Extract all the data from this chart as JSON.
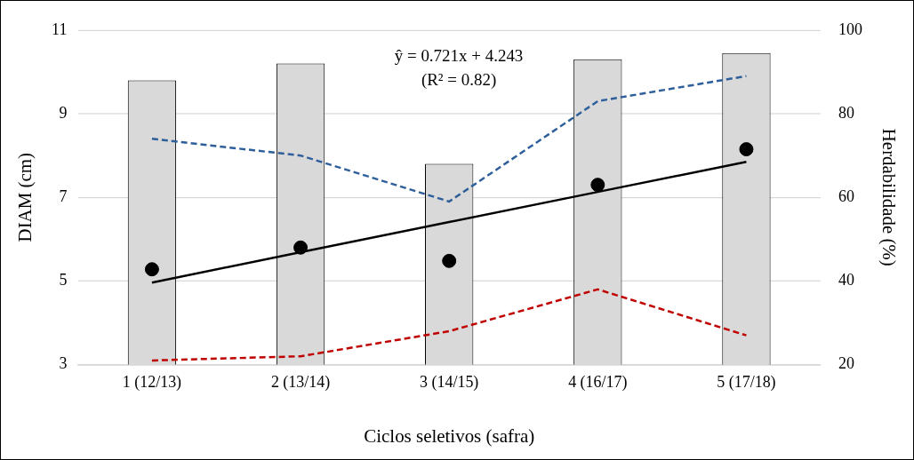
{
  "chart_data": {
    "type": "bar",
    "xlabel": "Ciclos seletivos (safra)",
    "ylabel": "DIAM (cm)",
    "y2label": "Herdabilidade (%)",
    "categories": [
      "1 (12/13)",
      "2 (13/14)",
      "3 (14/15)",
      "4 (16/17)",
      "5 (17/18)"
    ],
    "series": [
      {
        "axis": "y2",
        "color": "#d9d9d9",
        "values": [
          88,
          92,
          68,
          93,
          94.5
        ]
      },
      {
        "type": "line",
        "color": "#2e5f9a",
        "line_style": "dashed",
        "marker": "none",
        "values": [
          8.4,
          8.0,
          6.9,
          9.3,
          9.9
        ]
      },
      {
        "type": "line",
        "color": "#c00000",
        "line_style": "dashed",
        "marker": "none",
        "values": [
          3.1,
          3.2,
          3.8,
          4.8,
          3.7
        ]
      },
      {
        "type": "line",
        "color": "#000000",
        "line_style": "solid",
        "marker": "none",
        "values": [
          4.96,
          5.69,
          6.41,
          7.13,
          7.85
        ]
      },
      {
        "type": "scatter",
        "color": "#000000",
        "marker": "circle",
        "values": [
          5.28,
          5.8,
          5.48,
          7.3,
          8.15
        ]
      }
    ],
    "ylim": [
      3,
      11
    ],
    "yticks": [
      3,
      5,
      7,
      9,
      11
    ],
    "y2lim": [
      20,
      100
    ],
    "y2ticks": [
      20,
      40,
      60,
      80,
      100
    ],
    "grid": "y",
    "legend": false,
    "annotations": [
      "ŷ = 0.721x + 4.243",
      "(R² = 0.82)"
    ]
  }
}
